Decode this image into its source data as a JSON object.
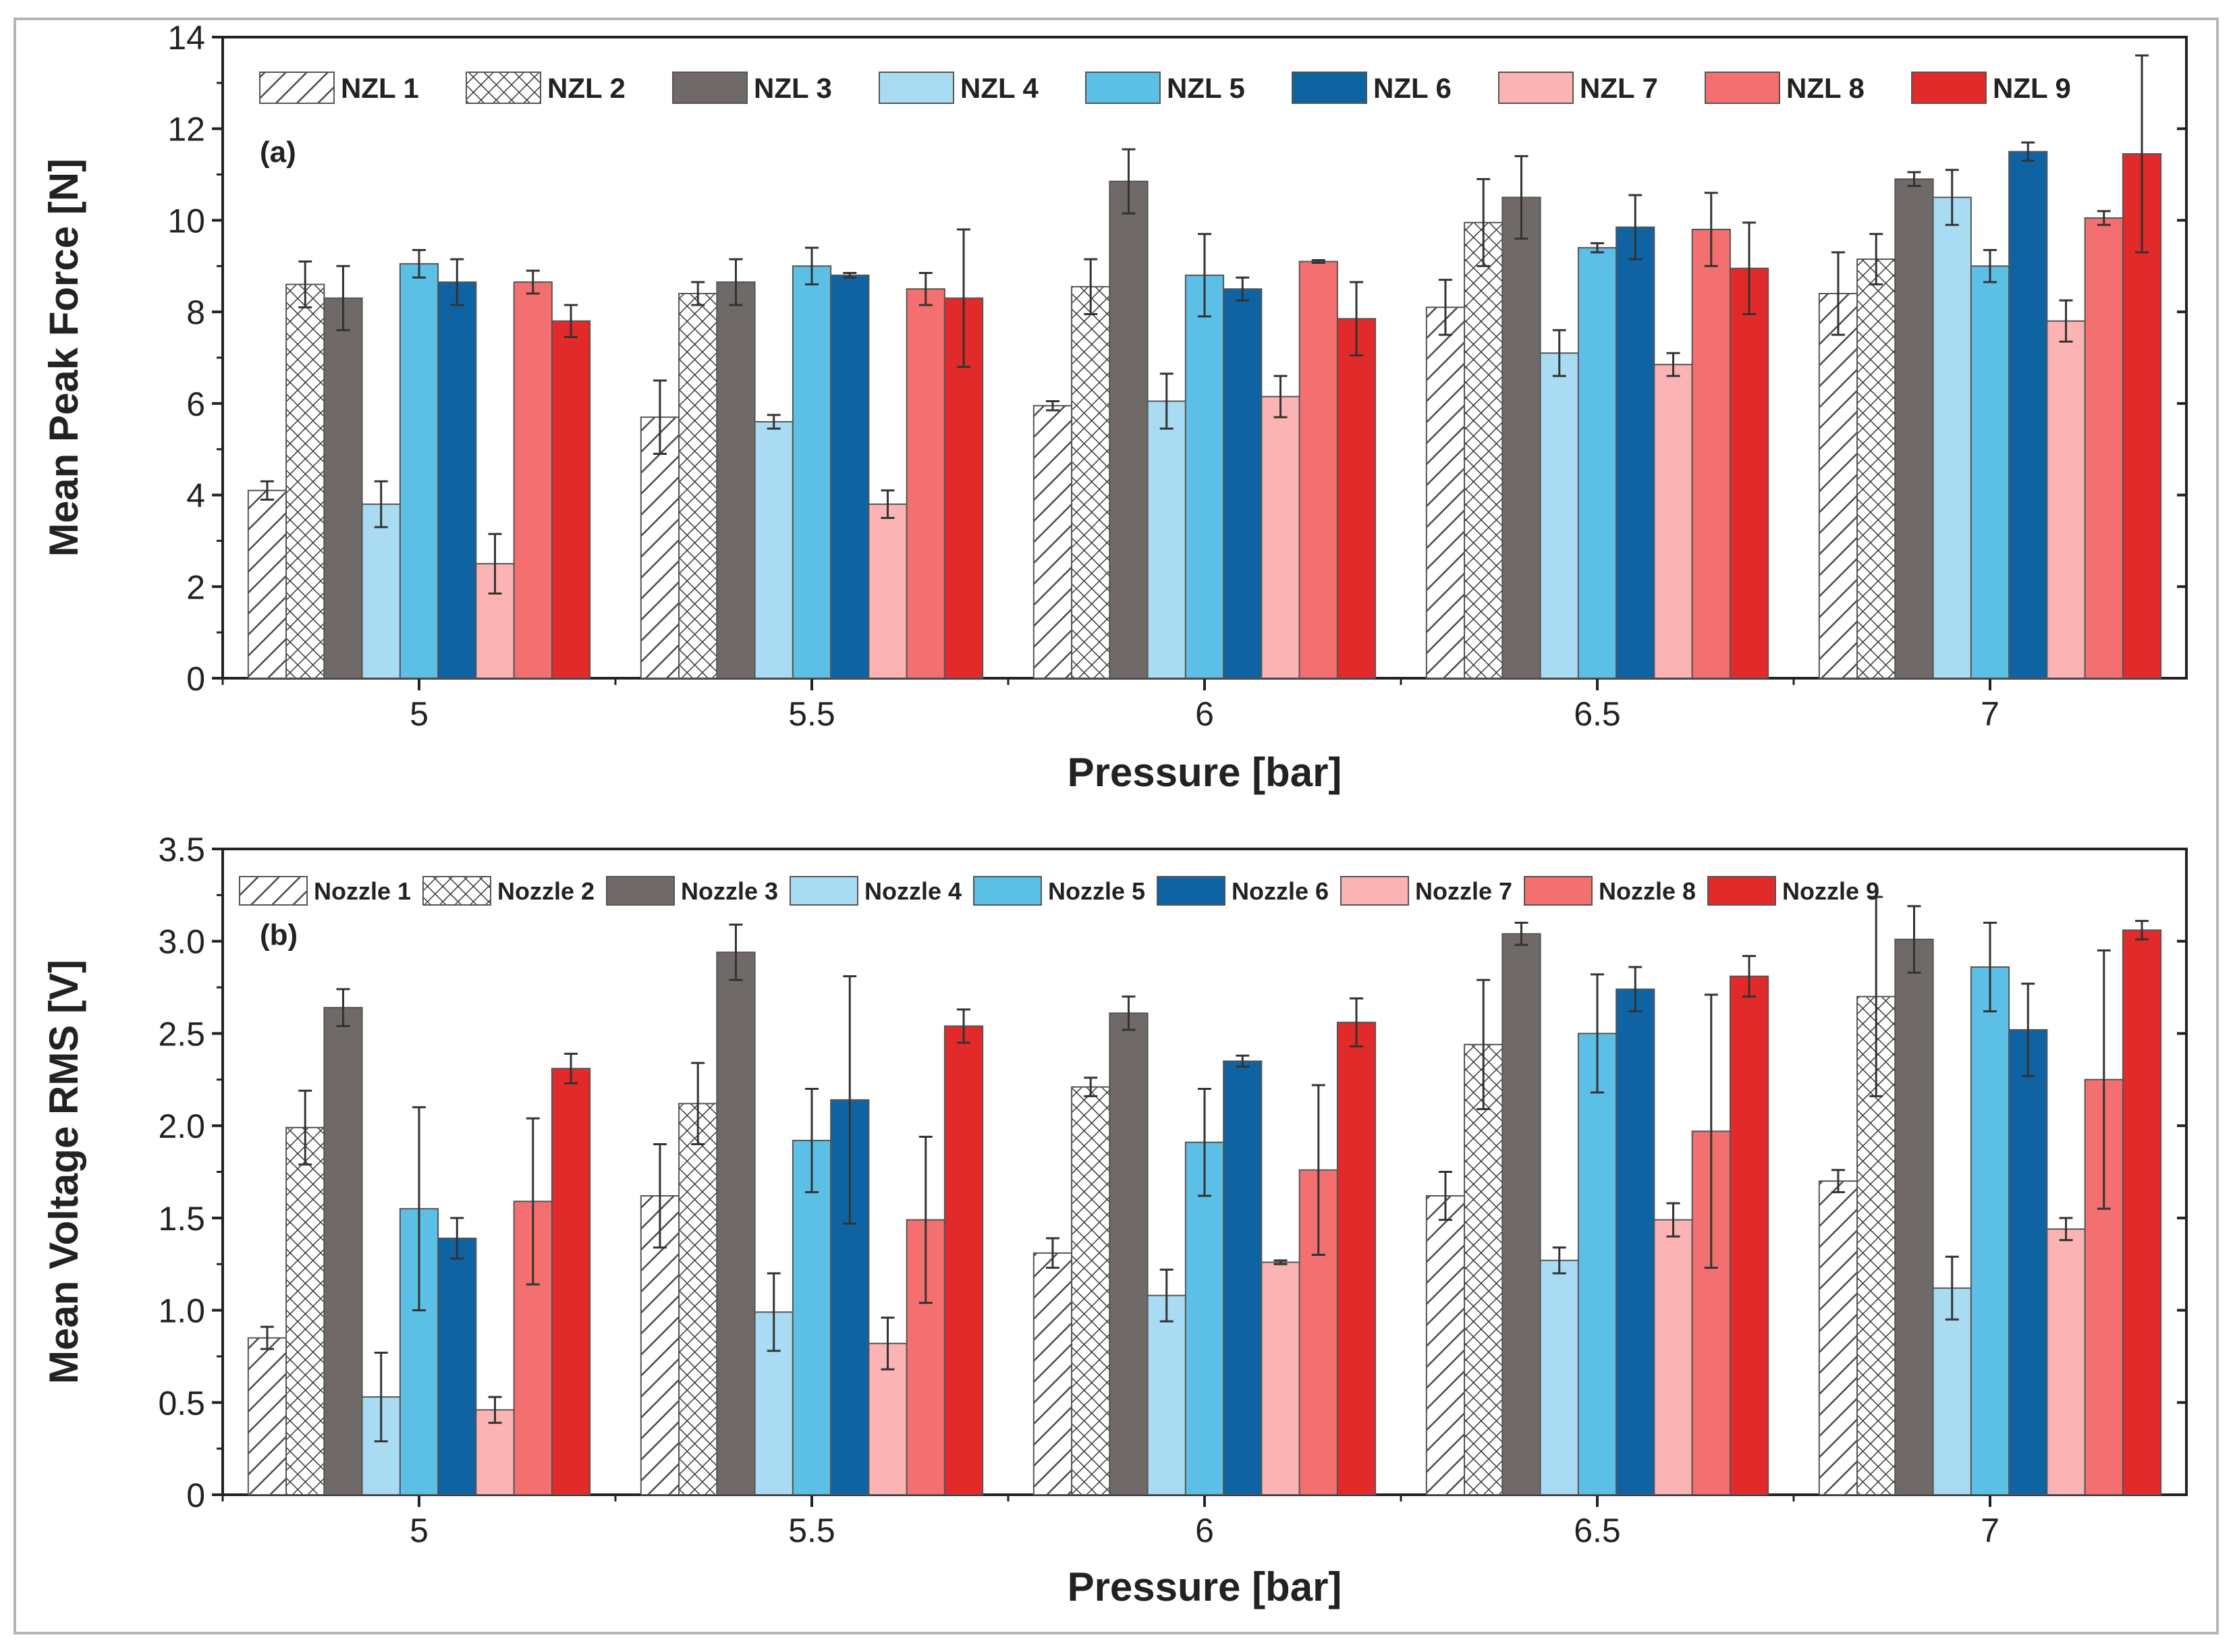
{
  "colors": {
    "axis": "#222222",
    "nozzle1": "#ffffff",
    "nozzle2": "#ffffff",
    "nozzle3": "#6f6a68",
    "nozzle4": "#a9dcf2",
    "nozzle5": "#5bbfe6",
    "nozzle6": "#0f63a3",
    "nozzle7": "#fbb3b3",
    "nozzle8": "#f46f6f",
    "nozzle9": "#e32a2a"
  },
  "chart_data": [
    {
      "type": "bar",
      "panel_label": "(a)",
      "title": "",
      "xlabel": "Pressure [bar]",
      "ylabel": "Mean  Peak Force [N]",
      "categories": [
        "5",
        "5.5",
        "6",
        "6.5",
        "7"
      ],
      "ylim": [
        0,
        14
      ],
      "yticks": [
        0,
        2,
        4,
        6,
        8,
        10,
        12,
        14
      ],
      "ytick_labels": [
        "0",
        "2",
        "4",
        "6",
        "8",
        "10",
        "12",
        "14"
      ],
      "legend_position": "top",
      "series": [
        {
          "name": "NZL 1",
          "values": [
            4.1,
            5.7,
            5.95,
            8.1,
            8.4
          ],
          "errors": [
            0.2,
            0.8,
            0.1,
            0.6,
            0.9
          ],
          "pattern": "hatch"
        },
        {
          "name": "NZL 2",
          "values": [
            8.6,
            8.4,
            8.55,
            9.95,
            9.15
          ],
          "errors": [
            0.5,
            0.25,
            0.6,
            0.95,
            0.55
          ],
          "pattern": "cross"
        },
        {
          "name": "NZL 3",
          "values": [
            8.3,
            8.65,
            10.85,
            10.5,
            10.9
          ],
          "errors": [
            0.7,
            0.5,
            0.7,
            0.9,
            0.15
          ],
          "pattern": "solid"
        },
        {
          "name": "NZL 4",
          "values": [
            3.8,
            5.6,
            6.05,
            7.1,
            10.5
          ],
          "errors": [
            0.5,
            0.15,
            0.6,
            0.5,
            0.6
          ],
          "pattern": "solid"
        },
        {
          "name": "NZL 5",
          "values": [
            9.05,
            9.0,
            8.8,
            9.4,
            9.0
          ],
          "errors": [
            0.3,
            0.4,
            0.9,
            0.1,
            0.35
          ],
          "pattern": "solid"
        },
        {
          "name": "NZL 6",
          "values": [
            8.65,
            8.8,
            8.5,
            9.85,
            11.5
          ],
          "errors": [
            0.5,
            0.05,
            0.25,
            0.7,
            0.2
          ],
          "pattern": "solid"
        },
        {
          "name": "NZL 7",
          "values": [
            2.5,
            3.8,
            6.15,
            6.85,
            7.8
          ],
          "errors": [
            0.65,
            0.3,
            0.45,
            0.25,
            0.45
          ],
          "pattern": "solid"
        },
        {
          "name": "NZL 8",
          "values": [
            8.65,
            8.5,
            9.1,
            9.8,
            10.05
          ],
          "errors": [
            0.25,
            0.35,
            0.03,
            0.8,
            0.15
          ],
          "pattern": "solid"
        },
        {
          "name": "NZL 9",
          "values": [
            7.8,
            8.3,
            7.85,
            8.95,
            11.45
          ],
          "errors": [
            0.35,
            1.5,
            0.8,
            1.0,
            2.15
          ],
          "pattern": "solid"
        }
      ]
    },
    {
      "type": "bar",
      "panel_label": "(b)",
      "title": "",
      "xlabel": "Pressure [bar]",
      "ylabel": "Mean Voltage RMS [V]",
      "categories": [
        "5",
        "5.5",
        "6",
        "6.5",
        "7"
      ],
      "ylim": [
        0,
        3.5
      ],
      "yticks": [
        0,
        0.5,
        1.0,
        1.5,
        2.0,
        2.5,
        3.0,
        3.5
      ],
      "ytick_labels": [
        "0",
        "0.5",
        "1.0",
        "1.5",
        "2.0",
        "2.5",
        "3.0",
        "3.5"
      ],
      "legend_position": "top",
      "series": [
        {
          "name": "Nozzle 1",
          "values": [
            0.85,
            1.62,
            1.31,
            1.62,
            1.7
          ],
          "errors": [
            0.06,
            0.28,
            0.08,
            0.13,
            0.06
          ],
          "pattern": "hatch"
        },
        {
          "name": "Nozzle 2",
          "values": [
            1.99,
            2.12,
            2.21,
            2.44,
            2.7
          ],
          "errors": [
            0.2,
            0.22,
            0.05,
            0.35,
            0.54
          ],
          "pattern": "cross"
        },
        {
          "name": "Nozzle 3",
          "values": [
            2.64,
            2.94,
            2.61,
            3.04,
            3.01
          ],
          "errors": [
            0.1,
            0.15,
            0.09,
            0.06,
            0.18
          ],
          "pattern": "solid"
        },
        {
          "name": "Nozzle 4",
          "values": [
            0.53,
            0.99,
            1.08,
            1.27,
            1.12
          ],
          "errors": [
            0.24,
            0.21,
            0.14,
            0.07,
            0.17
          ],
          "pattern": "solid"
        },
        {
          "name": "Nozzle 5",
          "values": [
            1.55,
            1.92,
            1.91,
            2.5,
            2.86
          ],
          "errors": [
            0.55,
            0.28,
            0.29,
            0.32,
            0.24
          ],
          "pattern": "solid"
        },
        {
          "name": "Nozzle 6",
          "values": [
            1.39,
            2.14,
            2.35,
            2.74,
            2.52
          ],
          "errors": [
            0.11,
            0.67,
            0.03,
            0.12,
            0.25
          ],
          "pattern": "solid"
        },
        {
          "name": "Nozzle 7",
          "values": [
            0.46,
            0.82,
            1.26,
            1.49,
            1.44
          ],
          "errors": [
            0.07,
            0.14,
            0.01,
            0.09,
            0.06
          ],
          "pattern": "solid"
        },
        {
          "name": "Nozzle 8",
          "values": [
            1.59,
            1.49,
            1.76,
            1.97,
            2.25
          ],
          "errors": [
            0.45,
            0.45,
            0.46,
            0.74,
            0.7
          ],
          "pattern": "solid"
        },
        {
          "name": "Nozzle 9",
          "values": [
            2.31,
            2.54,
            2.56,
            2.81,
            3.06
          ],
          "errors": [
            0.08,
            0.09,
            0.13,
            0.11,
            0.05
          ],
          "pattern": "solid"
        }
      ]
    }
  ]
}
